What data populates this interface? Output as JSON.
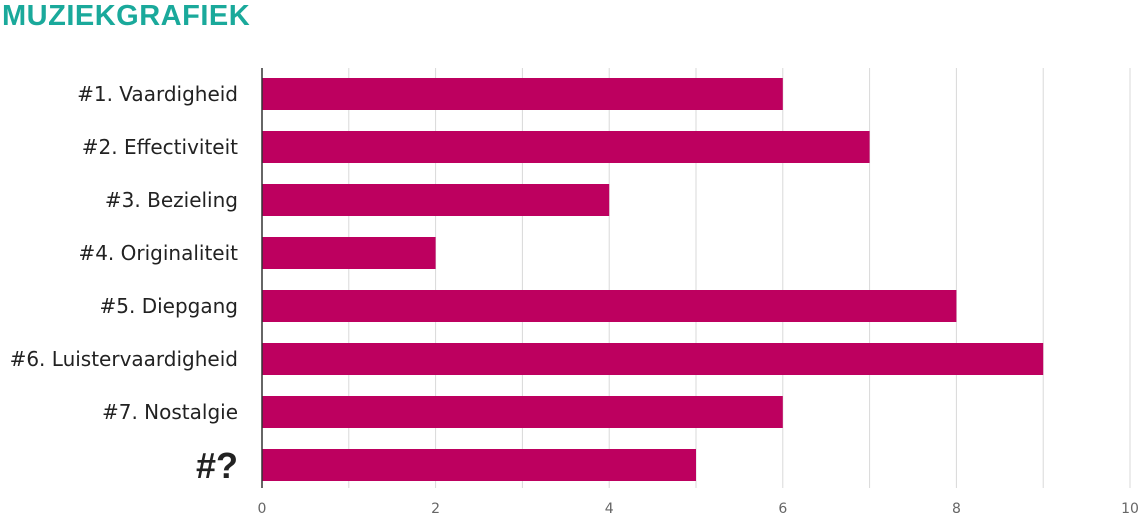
{
  "title": "MUZIEKGRAFIEK",
  "colors": {
    "title": "#1aa99b",
    "bar": "#bd005f",
    "highlight_label": "#bd005f",
    "grid": "#d9d9d9",
    "axis": "#333333"
  },
  "chart_data": {
    "type": "bar",
    "orientation": "horizontal",
    "title": "MUZIEKGRAFIEK",
    "xlabel": "",
    "ylabel": "",
    "categories": [
      "#1. Vaardigheid",
      "#2. Effectiviteit",
      "#3. Bezieling",
      "#4. Originaliteit",
      "#5. Diepgang",
      "#6. Luistervaardigheid",
      "#7. Nostalgie",
      "#?"
    ],
    "values": [
      6,
      7,
      4,
      2,
      8,
      9,
      6,
      5
    ],
    "xlim": [
      0,
      10
    ],
    "xticks": [
      "0",
      "2",
      "4",
      "6",
      "8",
      "10"
    ],
    "grid": true,
    "legend": "none"
  }
}
